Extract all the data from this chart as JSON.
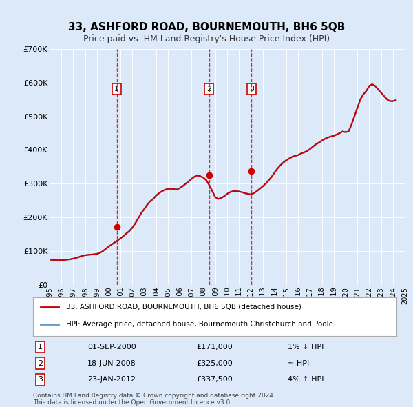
{
  "title": "33, ASHFORD ROAD, BOURNEMOUTH, BH6 5QB",
  "subtitle": "Price paid vs. HM Land Registry's House Price Index (HPI)",
  "background_color": "#dce9f8",
  "plot_bg_color": "#dce9f8",
  "sold_color": "#cc0000",
  "hpi_color": "#6699cc",
  "ylim": [
    0,
    700000
  ],
  "yticks": [
    0,
    100000,
    200000,
    300000,
    400000,
    500000,
    600000,
    700000
  ],
  "ytick_labels": [
    "£0",
    "£100K",
    "£200K",
    "£300K",
    "£400K",
    "£500K",
    "£600K",
    "£700K"
  ],
  "transactions": [
    {
      "label": 1,
      "date": "01-SEP-2000",
      "price": 171000,
      "note": "1% ↓ HPI",
      "x_year": 2000.67
    },
    {
      "label": 2,
      "date": "18-JUN-2008",
      "price": 325000,
      "note": "≈ HPI",
      "x_year": 2008.46
    },
    {
      "label": 3,
      "date": "23-JAN-2012",
      "price": 337500,
      "note": "4% ↑ HPI",
      "x_year": 2012.06
    }
  ],
  "legend_line1": "33, ASHFORD ROAD, BOURNEMOUTH, BH6 5QB (detached house)",
  "legend_line2": "HPI: Average price, detached house, Bournemouth Christchurch and Poole",
  "footer1": "Contains HM Land Registry data © Crown copyright and database right 2024.",
  "footer2": "This data is licensed under the Open Government Licence v3.0.",
  "hpi_data": {
    "years": [
      1995,
      1995.25,
      1995.5,
      1995.75,
      1996,
      1996.25,
      1996.5,
      1996.75,
      1997,
      1997.25,
      1997.5,
      1997.75,
      1998,
      1998.25,
      1998.5,
      1998.75,
      1999,
      1999.25,
      1999.5,
      1999.75,
      2000,
      2000.25,
      2000.5,
      2000.75,
      2001,
      2001.25,
      2001.5,
      2001.75,
      2002,
      2002.25,
      2002.5,
      2002.75,
      2003,
      2003.25,
      2003.5,
      2003.75,
      2004,
      2004.25,
      2004.5,
      2004.75,
      2005,
      2005.25,
      2005.5,
      2005.75,
      2006,
      2006.25,
      2006.5,
      2006.75,
      2007,
      2007.25,
      2007.5,
      2007.75,
      2008,
      2008.25,
      2008.5,
      2008.75,
      2009,
      2009.25,
      2009.5,
      2009.75,
      2010,
      2010.25,
      2010.5,
      2010.75,
      2011,
      2011.25,
      2011.5,
      2011.75,
      2012,
      2012.25,
      2012.5,
      2012.75,
      2013,
      2013.25,
      2013.5,
      2013.75,
      2014,
      2014.25,
      2014.5,
      2014.75,
      2015,
      2015.25,
      2015.5,
      2015.75,
      2016,
      2016.25,
      2016.5,
      2016.75,
      2017,
      2017.25,
      2017.5,
      2017.75,
      2018,
      2018.25,
      2018.5,
      2018.75,
      2019,
      2019.25,
      2019.5,
      2019.75,
      2020,
      2020.25,
      2020.5,
      2020.75,
      2021,
      2021.25,
      2021.5,
      2021.75,
      2022,
      2022.25,
      2022.5,
      2022.75,
      2023,
      2023.25,
      2023.5,
      2023.75,
      2024,
      2024.25
    ],
    "values": [
      75000,
      74000,
      73500,
      73000,
      73500,
      74000,
      75000,
      76000,
      78000,
      80000,
      83000,
      86000,
      88000,
      89000,
      90000,
      90500,
      92000,
      95000,
      100000,
      107000,
      114000,
      120000,
      126000,
      132000,
      138000,
      145000,
      153000,
      160000,
      170000,
      183000,
      198000,
      213000,
      225000,
      238000,
      248000,
      255000,
      265000,
      272000,
      278000,
      282000,
      285000,
      285000,
      284000,
      283000,
      287000,
      293000,
      300000,
      307000,
      315000,
      321000,
      325000,
      322000,
      318000,
      310000,
      295000,
      278000,
      260000,
      255000,
      258000,
      263000,
      270000,
      275000,
      278000,
      278000,
      277000,
      275000,
      272000,
      270000,
      268000,
      272000,
      278000,
      285000,
      292000,
      300000,
      310000,
      320000,
      333000,
      345000,
      355000,
      363000,
      370000,
      375000,
      380000,
      383000,
      385000,
      390000,
      393000,
      397000,
      403000,
      410000,
      417000,
      422000,
      428000,
      433000,
      437000,
      440000,
      442000,
      446000,
      450000,
      455000,
      453000,
      455000,
      475000,
      500000,
      525000,
      550000,
      565000,
      575000,
      590000,
      595000,
      590000,
      580000,
      570000,
      560000,
      550000,
      545000,
      545000,
      548000
    ]
  },
  "sold_data": {
    "years": [
      1995.5,
      2000.67,
      2008.46,
      2012.06,
      2024.0
    ],
    "values": [
      75000,
      171000,
      325000,
      337500,
      595000
    ]
  },
  "xmin": 1995,
  "xmax": 2025
}
